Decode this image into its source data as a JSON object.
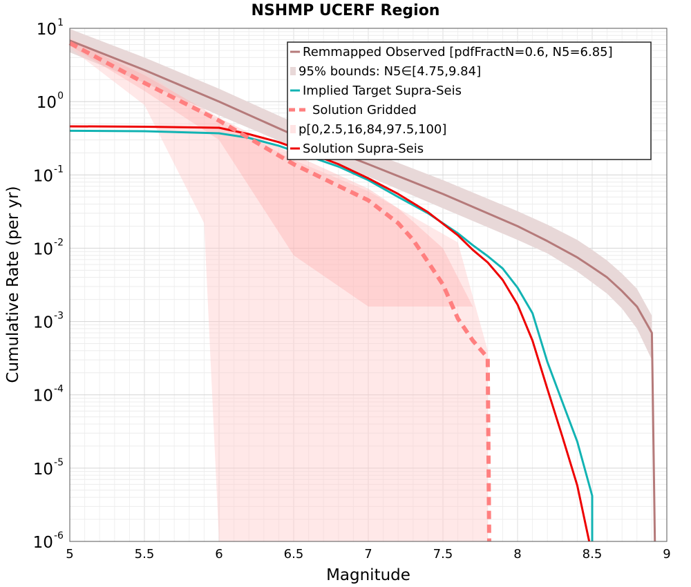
{
  "chart_data": {
    "type": "line",
    "title": "NSHMP UCERF Region",
    "xlabel": "Magnitude",
    "ylabel": "Cumulative Rate (per yr)",
    "xlim": [
      5,
      9
    ],
    "ylim": [
      1e-06,
      10
    ],
    "yscale": "log",
    "grid": true,
    "legend_position": "top-right",
    "x_ticks": [
      "5",
      "5.5",
      "6",
      "6.5",
      "7",
      "7.5",
      "8",
      "8.5",
      "9"
    ],
    "y_ticks": [
      {
        "base": "10",
        "exp": "1"
      },
      {
        "base": "10",
        "exp": "0"
      },
      {
        "base": "10",
        "exp": "-1"
      },
      {
        "base": "10",
        "exp": "-2"
      },
      {
        "base": "10",
        "exp": "-3"
      },
      {
        "base": "10",
        "exp": "-4"
      },
      {
        "base": "10",
        "exp": "-5"
      },
      {
        "base": "10",
        "exp": "-6"
      }
    ],
    "legend": [
      {
        "label": "Remmapped Observed [pdfFractN=0.6, N5=6.85]",
        "style": "line",
        "color": "#b57a7a"
      },
      {
        "label": "95% bounds: N5∈[4.75,9.84]",
        "style": "band",
        "color": "#e8d8d8"
      },
      {
        "label": "Implied Target Supra-Seis",
        "style": "line",
        "color": "#12b3b3"
      },
      {
        "label": "Solution Gridded",
        "style": "dashed",
        "color": "#ff7f7f"
      },
      {
        "label": "p[0,2.5,16,84,97.5,100]",
        "style": "band",
        "color": "#ffe4e4"
      },
      {
        "label": "Solution Supra-Seis",
        "style": "line",
        "color": "#ee0000"
      }
    ],
    "series": [
      {
        "name": "Remmapped Observed [pdfFractN=0.6, N5=6.85]",
        "color": "#b57a7a",
        "x": [
          5.0,
          5.5,
          6.0,
          6.5,
          7.0,
          7.5,
          8.0,
          8.2,
          8.4,
          8.5,
          8.6,
          8.7,
          8.8,
          8.9,
          8.92
        ],
        "y": [
          6.8,
          2.7,
          1.0,
          0.35,
          0.14,
          0.055,
          0.02,
          0.0125,
          0.0075,
          0.0055,
          0.004,
          0.0026,
          0.0016,
          0.0007,
          1e-06
        ]
      },
      {
        "name": "95% bounds: N5∈[4.75,9.84]",
        "color": "#e8d8d8",
        "x": [
          5.0,
          5.5,
          6.0,
          6.5,
          7.0,
          7.5,
          8.0,
          8.2,
          8.4,
          8.5,
          8.6,
          8.7,
          8.8,
          8.9
        ],
        "y_low": [
          4.7,
          1.8,
          0.65,
          0.24,
          0.095,
          0.035,
          0.013,
          0.0085,
          0.0048,
          0.0034,
          0.0024,
          0.0015,
          0.0008,
          0.0003
        ],
        "y_high": [
          9.8,
          4.0,
          1.5,
          0.52,
          0.21,
          0.085,
          0.032,
          0.021,
          0.013,
          0.0095,
          0.0068,
          0.0045,
          0.0028,
          0.0012
        ]
      },
      {
        "name": "Implied Target Supra-Seis",
        "color": "#12b3b3",
        "x": [
          5.0,
          5.5,
          6.0,
          6.2,
          6.4,
          6.6,
          6.8,
          7.0,
          7.2,
          7.4,
          7.6,
          7.7,
          7.8,
          7.9,
          8.0,
          8.1,
          8.2,
          8.3,
          8.4,
          8.5,
          8.5
        ],
        "y": [
          0.4,
          0.395,
          0.37,
          0.32,
          0.25,
          0.18,
          0.13,
          0.085,
          0.05,
          0.03,
          0.016,
          0.011,
          0.0078,
          0.0053,
          0.0029,
          0.0013,
          0.00028,
          8e-05,
          2.3e-05,
          4.2e-06,
          1e-06
        ]
      },
      {
        "name": "Solution Gridded",
        "color": "#ff7f7f",
        "x": [
          5.0,
          5.5,
          6.0,
          6.5,
          7.0,
          7.2,
          7.3,
          7.4,
          7.5,
          7.6,
          7.7,
          7.8,
          7.81
        ],
        "y": [
          6.3,
          1.8,
          0.55,
          0.14,
          0.045,
          0.022,
          0.013,
          0.0065,
          0.0032,
          0.0011,
          0.00055,
          0.00032,
          1e-06
        ]
      },
      {
        "name": "p[0,2.5,16,84,97.5,100]",
        "color": "#ffe4e4",
        "bands": [
          {
            "x": [
              5.0,
              5.5,
              5.9,
              6.0,
              6.5,
              7.0,
              7.2,
              7.6,
              7.8
            ],
            "y_low": [
              5.4,
              0.9,
              0.022,
              1e-06,
              1e-06,
              1e-06,
              1e-06,
              1e-06,
              1e-06
            ],
            "y_high": [
              7.4,
              2.6,
              0.7,
              0.55,
              0.16,
              0.06,
              0.035,
              0.012,
              0.0004
            ]
          },
          {
            "x": [
              5.0,
              5.5,
              6.0,
              6.5,
              7.0,
              7.2,
              7.5,
              7.7,
              7.8
            ],
            "y_low": [
              5.8,
              1.4,
              0.3,
              0.008,
              0.0016,
              0.0016,
              0.0016,
              0.0016,
              0.0016
            ],
            "y_high": [
              7.0,
              2.3,
              0.6,
              0.19,
              0.065,
              0.035,
              0.01,
              0.0016,
              0.0016
            ]
          }
        ]
      },
      {
        "name": "Solution Supra-Seis",
        "color": "#ee0000",
        "x": [
          5.0,
          5.5,
          6.0,
          6.2,
          6.4,
          6.6,
          6.8,
          7.0,
          7.2,
          7.4,
          7.6,
          7.7,
          7.8,
          7.9,
          8.0,
          8.1,
          8.2,
          8.3,
          8.4,
          8.48
        ],
        "y": [
          0.46,
          0.455,
          0.44,
          0.36,
          0.28,
          0.2,
          0.14,
          0.09,
          0.055,
          0.031,
          0.015,
          0.0095,
          0.0064,
          0.0037,
          0.0017,
          0.00055,
          0.00012,
          2.7e-05,
          5.8e-06,
          1e-06
        ]
      }
    ]
  }
}
